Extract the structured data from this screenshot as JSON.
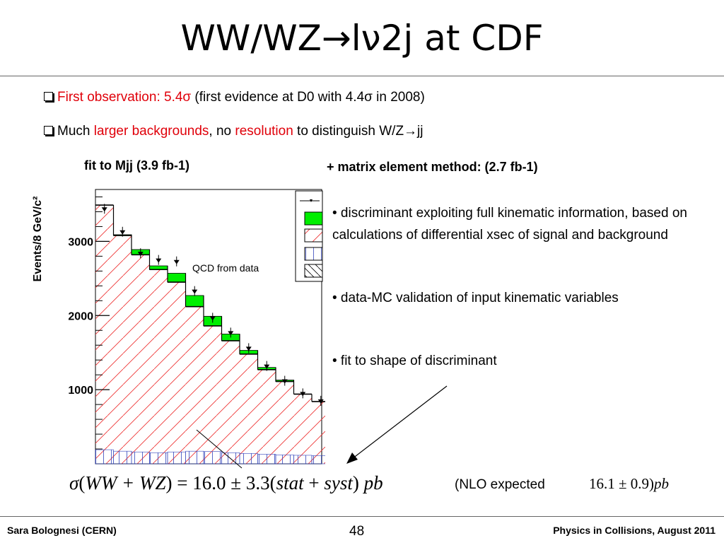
{
  "slide": {
    "title": "WW/WZ→lν2j at CDF",
    "bullets": [
      {
        "parts": [
          {
            "text": "First observation: 5.4",
            "color": "#e0000a"
          },
          {
            "text": "σ",
            "color": "#e0000a"
          },
          {
            "text": " (first evidence at D0 with 4.4",
            "color": "#000000"
          },
          {
            "text": "σ",
            "color": "#000000"
          },
          {
            "text": " in 2008)",
            "color": "#000000"
          }
        ]
      },
      {
        "parts": [
          {
            "text": "Much ",
            "color": "#000000"
          },
          {
            "text": "larger backgrounds",
            "color": "#e0000a"
          },
          {
            "text": ", no ",
            "color": "#000000"
          },
          {
            "text": "resolution",
            "color": "#e0000a"
          },
          {
            "text": " to distinguish W/Z→jj",
            "color": "#000000"
          }
        ]
      }
    ],
    "left_heading": "fit to Mjj (3.9 fb-1)",
    "right_heading": "+ matrix element method:  (2.7 fb-1)",
    "right_points": [
      "• discriminant exploiting full kinematic information, based on calculations of differential xsec of signal and background",
      "• data-MC validation of input kinematic variables",
      "• fit to shape of discriminant"
    ],
    "formula": {
      "sigma": "σ",
      "open": "(",
      "process": "WW + WZ",
      "close": ")",
      "equals": "= 16.0 ± 3.3(",
      "stat": "stat",
      "plus": " + ",
      "syst": "syst",
      "tail": ")",
      "unit": " pb"
    },
    "nlo_label": "(NLO expected",
    "nlo_value": "16.1 ± 0.9)",
    "nlo_unit": "pb"
  },
  "footer": {
    "left": "Sara Bolognesi (CERN)",
    "page_number": "48",
    "right": "Physics in Collisions, August 2011"
  },
  "chart_data": {
    "type": "bar",
    "ylabel": "Events/8 GeV/c²",
    "y_ticks": [
      "1000",
      "2000",
      "3000"
    ],
    "ylim": [
      0,
      3700
    ],
    "annotation": "QCD from data",
    "total_stack": [
      3490,
      3090,
      2890,
      2670,
      2570,
      2270,
      1990,
      1750,
      1530,
      1300,
      1130,
      940,
      840
    ],
    "background_top": [
      3490,
      3080,
      2820,
      2620,
      2450,
      2120,
      1860,
      1660,
      1480,
      1270,
      1110,
      940,
      840
    ],
    "data_points": [
      3440,
      3130,
      2840,
      2750,
      2730,
      2330,
      1970,
      1770,
      1560,
      1320,
      1120,
      950,
      850
    ],
    "low_background": [
      190,
      170,
      160,
      150,
      160,
      170,
      165,
      150,
      140,
      130,
      120,
      115,
      110
    ],
    "colors": {
      "signal": "#00ee00",
      "background_hatch": "#ee3333",
      "low_hatch": "#3344bb"
    }
  }
}
